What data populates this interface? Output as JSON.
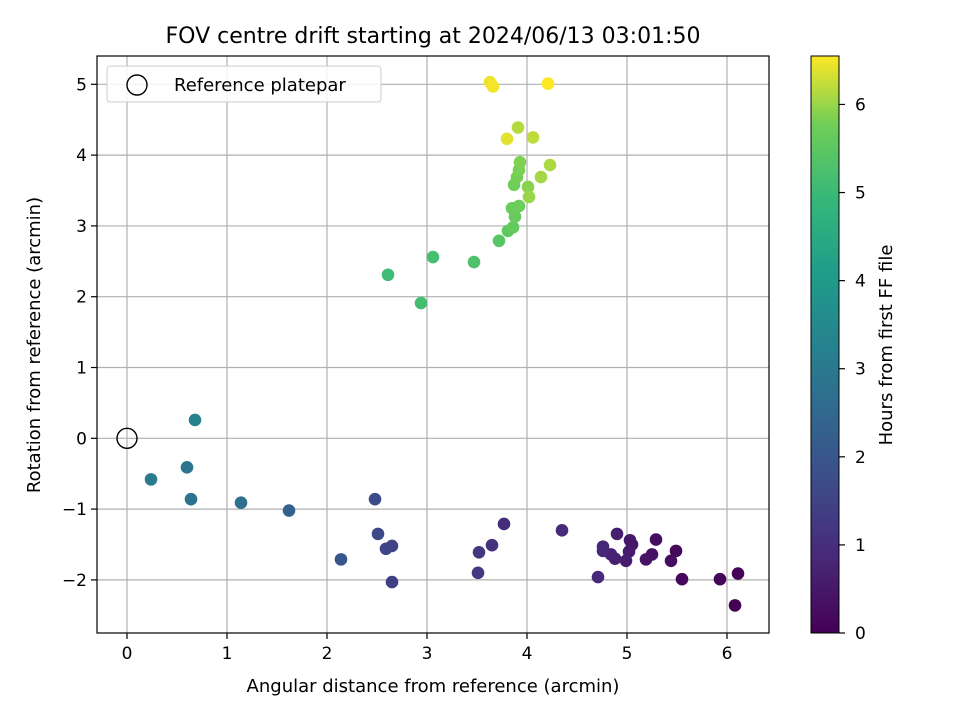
{
  "chart_data": {
    "type": "scatter",
    "title": "FOV centre drift starting at 2024/06/13 03:01:50",
    "xlabel": "Angular distance from reference (arcmin)",
    "ylabel": "Rotation from reference (arcmin)",
    "xlim": [
      -0.3,
      6.42
    ],
    "ylim": [
      -2.75,
      5.4
    ],
    "xticks": [
      0,
      1,
      2,
      3,
      4,
      5,
      6
    ],
    "yticks": [
      -2,
      -1,
      0,
      1,
      2,
      3,
      4,
      5
    ],
    "grid": true,
    "legend": {
      "position": "top-left",
      "entries": [
        "Reference platepar"
      ]
    },
    "reference": {
      "name": "Reference platepar",
      "x": 0,
      "y": 0
    },
    "colorbar": {
      "label": "Hours from first FF file",
      "range": [
        0,
        6.55
      ],
      "ticks": [
        0,
        1,
        2,
        3,
        4,
        5,
        6
      ],
      "colormap": "viridis"
    },
    "series": [
      {
        "points": [
          {
            "x": 6.08,
            "y": -2.36,
            "c": 0.0
          },
          {
            "x": 6.11,
            "y": -1.91,
            "c": 0.05
          },
          {
            "x": 5.93,
            "y": -1.99,
            "c": 0.1
          },
          {
            "x": 5.55,
            "y": -1.99,
            "c": 0.15
          },
          {
            "x": 5.49,
            "y": -1.59,
            "c": 0.2
          },
          {
            "x": 5.44,
            "y": -1.73,
            "c": 0.25
          },
          {
            "x": 5.29,
            "y": -1.43,
            "c": 0.3
          },
          {
            "x": 5.25,
            "y": -1.64,
            "c": 0.35
          },
          {
            "x": 5.19,
            "y": -1.71,
            "c": 0.4
          },
          {
            "x": 5.05,
            "y": -1.5,
            "c": 0.45
          },
          {
            "x": 5.03,
            "y": -1.44,
            "c": 0.5
          },
          {
            "x": 5.02,
            "y": -1.6,
            "c": 0.55
          },
          {
            "x": 4.99,
            "y": -1.73,
            "c": 0.6
          },
          {
            "x": 4.9,
            "y": -1.35,
            "c": 0.65
          },
          {
            "x": 4.88,
            "y": -1.7,
            "c": 0.7
          },
          {
            "x": 4.84,
            "y": -1.64,
            "c": 0.75
          },
          {
            "x": 4.76,
            "y": -1.53,
            "c": 0.8
          },
          {
            "x": 4.76,
            "y": -1.59,
            "c": 0.85
          },
          {
            "x": 4.71,
            "y": -1.96,
            "c": 0.9
          },
          {
            "x": 4.35,
            "y": -1.3,
            "c": 0.95
          },
          {
            "x": 3.77,
            "y": -1.21,
            "c": 1.0
          },
          {
            "x": 3.65,
            "y": -1.51,
            "c": 1.1
          },
          {
            "x": 3.52,
            "y": -1.61,
            "c": 1.2
          },
          {
            "x": 3.51,
            "y": -1.9,
            "c": 1.25
          },
          {
            "x": 2.65,
            "y": -2.03,
            "c": 1.4
          },
          {
            "x": 2.65,
            "y": -1.52,
            "c": 1.5
          },
          {
            "x": 2.59,
            "y": -1.56,
            "c": 1.55
          },
          {
            "x": 2.51,
            "y": -1.35,
            "c": 1.6
          },
          {
            "x": 2.48,
            "y": -0.86,
            "c": 1.7
          },
          {
            "x": 2.14,
            "y": -1.71,
            "c": 2.0
          },
          {
            "x": 1.62,
            "y": -1.02,
            "c": 2.35
          },
          {
            "x": 1.14,
            "y": -0.91,
            "c": 2.75
          },
          {
            "x": 0.64,
            "y": -0.86,
            "c": 2.85
          },
          {
            "x": 0.6,
            "y": -0.41,
            "c": 2.9
          },
          {
            "x": 0.24,
            "y": -0.58,
            "c": 3.05
          },
          {
            "x": 0.68,
            "y": 0.26,
            "c": 3.3
          },
          {
            "x": 2.61,
            "y": 2.31,
            "c": 5.05
          },
          {
            "x": 2.94,
            "y": 1.91,
            "c": 5.15
          },
          {
            "x": 3.06,
            "y": 2.56,
            "c": 5.2
          },
          {
            "x": 3.47,
            "y": 2.49,
            "c": 5.3
          },
          {
            "x": 3.72,
            "y": 2.79,
            "c": 5.45
          },
          {
            "x": 3.81,
            "y": 2.93,
            "c": 5.55
          },
          {
            "x": 3.86,
            "y": 2.98,
            "c": 5.6
          },
          {
            "x": 3.88,
            "y": 3.13,
            "c": 5.65
          },
          {
            "x": 3.85,
            "y": 3.25,
            "c": 5.7
          },
          {
            "x": 3.92,
            "y": 3.28,
            "c": 5.72
          },
          {
            "x": 3.87,
            "y": 3.58,
            "c": 5.75
          },
          {
            "x": 3.9,
            "y": 3.69,
            "c": 5.8
          },
          {
            "x": 3.92,
            "y": 3.79,
            "c": 5.82
          },
          {
            "x": 3.93,
            "y": 3.9,
            "c": 5.85
          },
          {
            "x": 4.01,
            "y": 3.55,
            "c": 5.9
          },
          {
            "x": 4.02,
            "y": 3.41,
            "c": 6.0
          },
          {
            "x": 4.14,
            "y": 3.69,
            "c": 6.05
          },
          {
            "x": 4.23,
            "y": 3.86,
            "c": 6.1
          },
          {
            "x": 3.91,
            "y": 4.39,
            "c": 6.15
          },
          {
            "x": 4.06,
            "y": 4.25,
            "c": 6.2
          },
          {
            "x": 3.8,
            "y": 4.23,
            "c": 6.4
          },
          {
            "x": 3.63,
            "y": 5.03,
            "c": 6.45
          },
          {
            "x": 3.66,
            "y": 4.97,
            "c": 6.5
          },
          {
            "x": 4.21,
            "y": 5.01,
            "c": 6.55
          }
        ]
      }
    ]
  }
}
